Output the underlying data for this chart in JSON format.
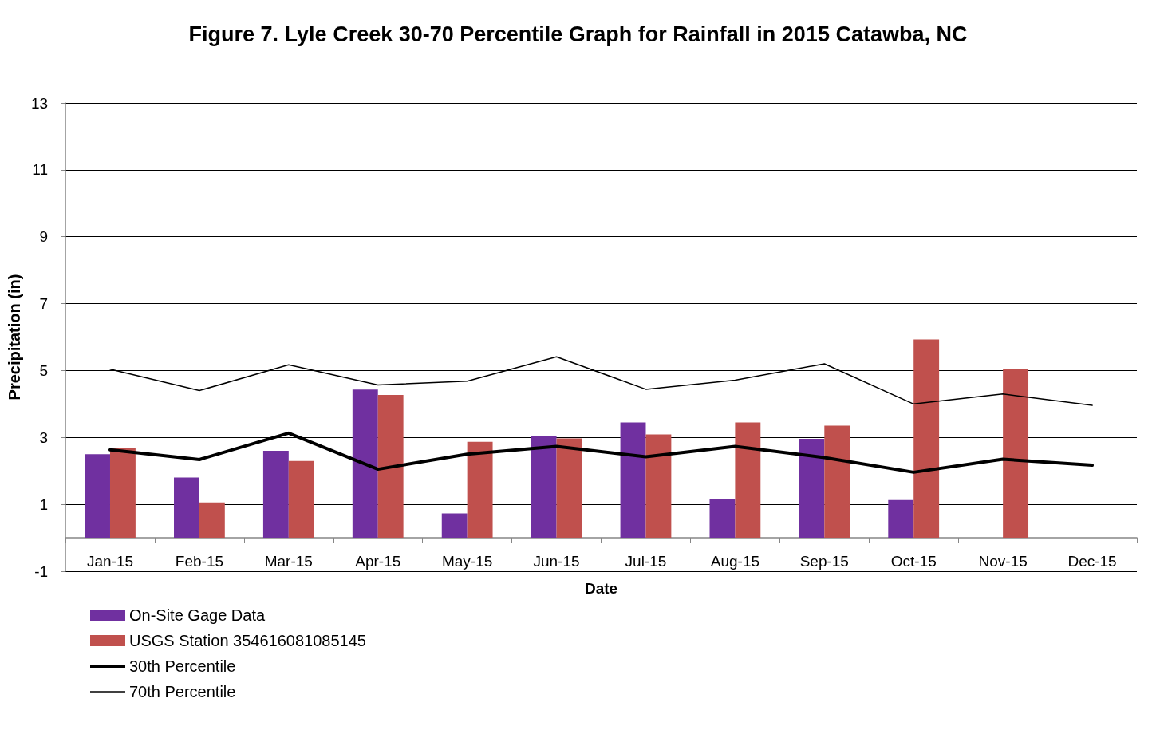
{
  "chart_data": {
    "type": "bar",
    "title": "Figure 7. Lyle Creek 30-70 Percentile Graph for Rainfall in 2015 Catawba, NC",
    "xlabel": "Date",
    "ylabel": "Precipitation (in)",
    "categories": [
      "Jan-15",
      "Feb-15",
      "Mar-15",
      "Apr-15",
      "May-15",
      "Jun-15",
      "Jul-15",
      "Aug-15",
      "Sep-15",
      "Oct-15",
      "Nov-15",
      "Dec-15"
    ],
    "series": [
      {
        "name": "On-Site Gage Data",
        "color": "#7030a0",
        "values": [
          2.5,
          1.8,
          2.6,
          4.43,
          0.73,
          3.05,
          3.45,
          1.16,
          2.96,
          1.13,
          null,
          null
        ]
      },
      {
        "name": "USGS Station 354616081085145",
        "color": "#c0504d",
        "values": [
          2.69,
          1.06,
          2.3,
          4.27,
          2.87,
          2.97,
          3.09,
          3.45,
          3.35,
          5.93,
          5.06,
          null
        ]
      },
      {
        "name": "30th Percentile",
        "type": "line",
        "color": "#000000",
        "values": [
          2.63,
          2.34,
          3.13,
          2.05,
          2.5,
          2.73,
          2.42,
          2.73,
          2.4,
          1.96,
          2.35,
          2.17
        ]
      },
      {
        "name": "70th Percentile",
        "type": "line",
        "color": "#000000",
        "values": [
          5.04,
          4.4,
          5.17,
          4.57,
          4.68,
          5.41,
          4.44,
          4.71,
          5.2,
          4.0,
          4.3,
          3.96
        ]
      }
    ],
    "ylim": [
      -1,
      13
    ],
    "yticks": [
      -1,
      1,
      3,
      5,
      7,
      9,
      11,
      13
    ],
    "grid": "y",
    "legend": "bottom left",
    "marker": "none",
    "line_style": "solid"
  }
}
